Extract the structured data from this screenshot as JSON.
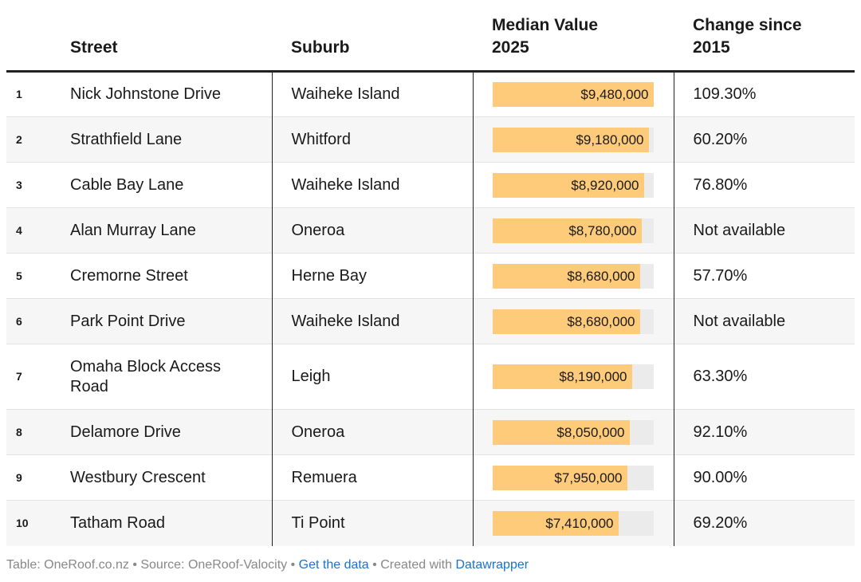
{
  "chart_data": {
    "type": "table",
    "columns": {
      "street": "Street",
      "suburb": "Suburb",
      "value_line1": "Median Value",
      "value_line2": "2025",
      "change_line1": "Change since",
      "change_line2": "2015"
    },
    "bar_max": 9480000,
    "bar_color": "#fecb7a",
    "track_color": "#ebebeb",
    "rows": [
      {
        "rank": "1",
        "street": "Nick Johnstone Drive",
        "suburb": "Waiheke Island",
        "value": 9480000,
        "value_label": "$9,480,000",
        "change": "109.30%"
      },
      {
        "rank": "2",
        "street": "Strathfield Lane",
        "suburb": "Whitford",
        "value": 9180000,
        "value_label": "$9,180,000",
        "change": "60.20%"
      },
      {
        "rank": "3",
        "street": "Cable Bay Lane",
        "suburb": "Waiheke Island",
        "value": 8920000,
        "value_label": "$8,920,000",
        "change": "76.80%"
      },
      {
        "rank": "4",
        "street": "Alan Murray Lane",
        "suburb": "Oneroa",
        "value": 8780000,
        "value_label": "$8,780,000",
        "change": "Not available"
      },
      {
        "rank": "5",
        "street": "Cremorne Street",
        "suburb": "Herne Bay",
        "value": 8680000,
        "value_label": "$8,680,000",
        "change": "57.70%"
      },
      {
        "rank": "6",
        "street": "Park Point Drive",
        "suburb": "Waiheke Island",
        "value": 8680000,
        "value_label": "$8,680,000",
        "change": "Not available"
      },
      {
        "rank": "7",
        "street": "Omaha Block Access Road",
        "suburb": "Leigh",
        "value": 8190000,
        "value_label": "$8,190,000",
        "change": "63.30%"
      },
      {
        "rank": "8",
        "street": "Delamore Drive",
        "suburb": "Oneroa",
        "value": 8050000,
        "value_label": "$8,050,000",
        "change": "92.10%"
      },
      {
        "rank": "9",
        "street": "Westbury Crescent",
        "suburb": "Remuera",
        "value": 7950000,
        "value_label": "$7,950,000",
        "change": "90.00%"
      },
      {
        "rank": "10",
        "street": "Tatham Road",
        "suburb": "Ti Point",
        "value": 7410000,
        "value_label": "$7,410,000",
        "change": "69.20%"
      }
    ]
  },
  "footer": {
    "part1": "Table: OneRoof.co.nz • Source: OneRoof-Valocity • ",
    "link1": "Get the data",
    "part2": " • Created with ",
    "link2": "Datawrapper"
  }
}
